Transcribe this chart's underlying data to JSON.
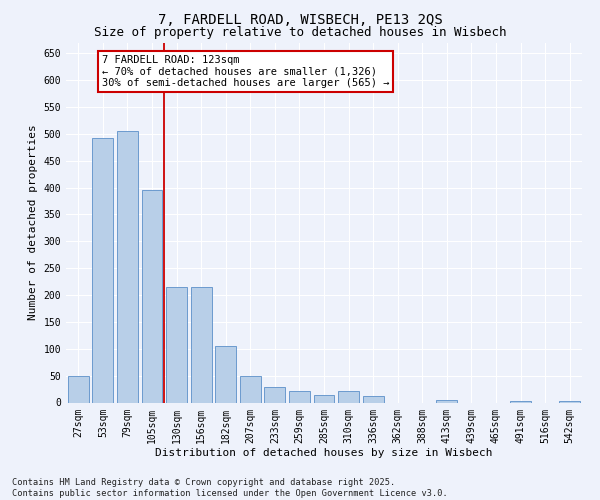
{
  "title1": "7, FARDELL ROAD, WISBECH, PE13 2QS",
  "title2": "Size of property relative to detached houses in Wisbech",
  "xlabel": "Distribution of detached houses by size in Wisbech",
  "ylabel": "Number of detached properties",
  "categories": [
    "27sqm",
    "53sqm",
    "79sqm",
    "105sqm",
    "130sqm",
    "156sqm",
    "182sqm",
    "207sqm",
    "233sqm",
    "259sqm",
    "285sqm",
    "310sqm",
    "336sqm",
    "362sqm",
    "388sqm",
    "413sqm",
    "439sqm",
    "465sqm",
    "491sqm",
    "516sqm",
    "542sqm"
  ],
  "values": [
    50,
    493,
    505,
    395,
    215,
    215,
    105,
    50,
    28,
    22,
    14,
    22,
    13,
    0,
    0,
    5,
    0,
    0,
    2,
    0,
    2
  ],
  "bar_color": "#b8cfe8",
  "bar_edge_color": "#5b8fc9",
  "bar_width": 0.85,
  "annotation_box_text": "7 FARDELL ROAD: 123sqm\n← 70% of detached houses are smaller (1,326)\n30% of semi-detached houses are larger (565) →",
  "annotation_box_color": "#ffffff",
  "annotation_box_edge": "#cc0000",
  "vline_color": "#cc0000",
  "vline_x_index": 3.5,
  "ylim": [
    0,
    670
  ],
  "yticks": [
    0,
    50,
    100,
    150,
    200,
    250,
    300,
    350,
    400,
    450,
    500,
    550,
    600,
    650
  ],
  "background_color": "#eef2fb",
  "grid_color": "#ffffff",
  "footnote": "Contains HM Land Registry data © Crown copyright and database right 2025.\nContains public sector information licensed under the Open Government Licence v3.0.",
  "title_fontsize": 10,
  "subtitle_fontsize": 9,
  "axis_label_fontsize": 8,
  "tick_fontsize": 7,
  "annot_fontsize": 7.5
}
